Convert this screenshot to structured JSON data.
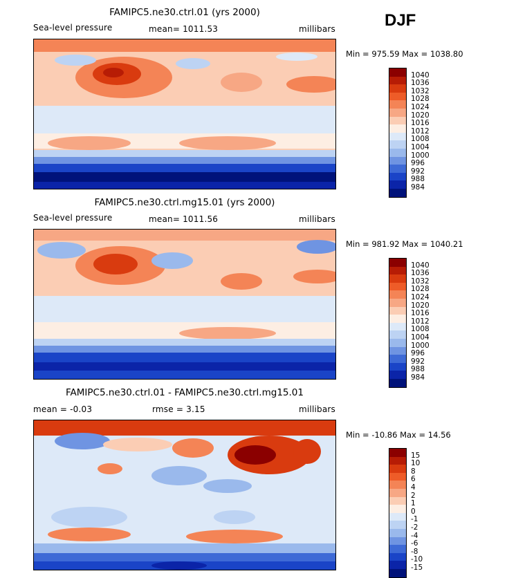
{
  "season": "DJF",
  "panels": [
    {
      "title": "FAMIPC5.ne30.ctrl.01 (yrs 2000)",
      "left_label": "Sea-level pressure",
      "center_label": "mean=  1011.53",
      "right_label": "millibars",
      "minmax": "Min = 975.59 Max = 1038.80",
      "levels": [
        "1040",
        "1036",
        "1032",
        "1028",
        "1024",
        "1020",
        "1016",
        "1012",
        "1008",
        "1004",
        "1000",
        "996",
        "992",
        "988",
        "984"
      ],
      "colors": [
        "#8b0000",
        "#b71c05",
        "#d93b0f",
        "#ee5c28",
        "#f48456",
        "#f7a784",
        "#fbcdb4",
        "#fdeee3",
        "#dde9f8",
        "#bdd3f3",
        "#9ab9ec",
        "#6f94e2",
        "#3e6ad6",
        "#1a44c7",
        "#0b24a8",
        "#00127a"
      ]
    },
    {
      "title": "FAMIPC5.ne30.ctrl.mg15.01 (yrs 2000)",
      "left_label": "Sea-level pressure",
      "center_label": "mean=  1011.56",
      "right_label": "millibars",
      "minmax": "Min = 981.92 Max = 1040.21",
      "levels": [
        "1040",
        "1036",
        "1032",
        "1028",
        "1024",
        "1020",
        "1016",
        "1012",
        "1008",
        "1004",
        "1000",
        "996",
        "992",
        "988",
        "984"
      ],
      "colors": [
        "#8b0000",
        "#b71c05",
        "#d93b0f",
        "#ee5c28",
        "#f48456",
        "#f7a784",
        "#fbcdb4",
        "#fdeee3",
        "#dde9f8",
        "#bdd3f3",
        "#9ab9ec",
        "#6f94e2",
        "#3e6ad6",
        "#1a44c7",
        "#0b24a8",
        "#00127a"
      ]
    },
    {
      "title": "FAMIPC5.ne30.ctrl.01 - FAMIPC5.ne30.ctrl.mg15.01",
      "left_label": "mean =   -0.03",
      "center_label": "rmse =    3.15",
      "right_label": "millibars",
      "minmax": "Min = -10.86 Max =  14.56",
      "levels": [
        "15",
        "10",
        "8",
        "6",
        "4",
        "2",
        "1",
        "0",
        "-1",
        "-2",
        "-4",
        "-6",
        "-8",
        "-10",
        "-15"
      ],
      "colors": [
        "#8b0000",
        "#b71c05",
        "#d93b0f",
        "#ee5c28",
        "#f48456",
        "#f7a784",
        "#fbcdb4",
        "#fdeee3",
        "#dde9f8",
        "#bdd3f3",
        "#9ab9ec",
        "#6f94e2",
        "#3e6ad6",
        "#1a44c7",
        "#0b24a8",
        "#00127a"
      ]
    }
  ]
}
